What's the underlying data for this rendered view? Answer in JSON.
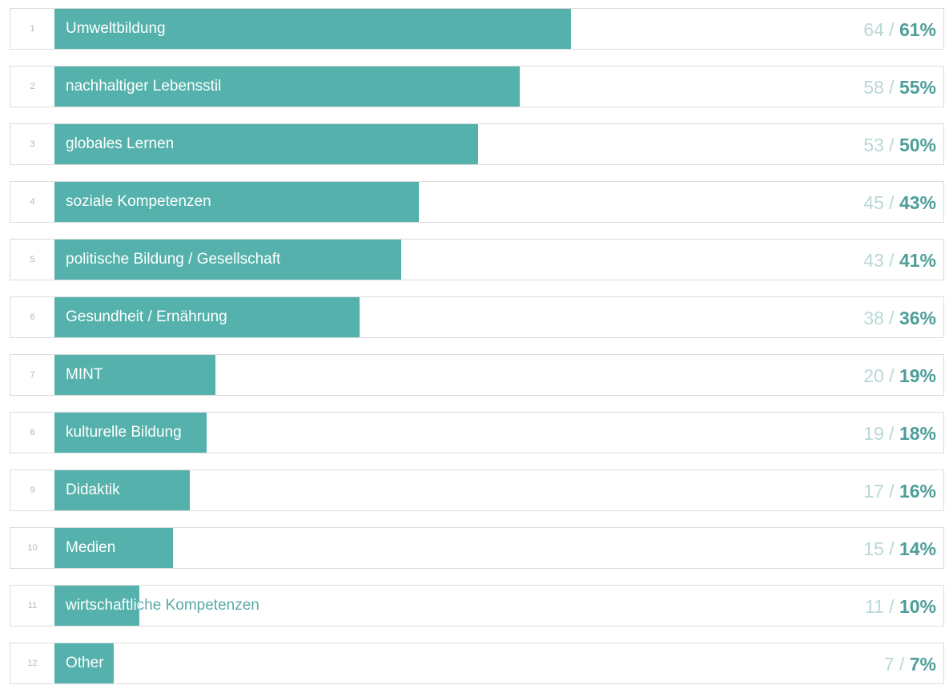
{
  "colors": {
    "bar": "#55b1ab",
    "count_text": "#b9d8d6",
    "percent_text": "#4d9e99",
    "rank_text": "#b7b7b7",
    "border": "#dcdcdc"
  },
  "chart_data": {
    "type": "bar",
    "orientation": "horizontal",
    "grid": false,
    "xlim": [
      0,
      105
    ],
    "items": [
      {
        "rank": "1",
        "label": "Umweltbildung",
        "count": "64",
        "percent": "61%",
        "value": 61
      },
      {
        "rank": "2",
        "label": "nachhaltiger Lebensstil",
        "count": "58",
        "percent": "55%",
        "value": 55
      },
      {
        "rank": "3",
        "label": "globales Lernen",
        "count": "53",
        "percent": "50%",
        "value": 50
      },
      {
        "rank": "4",
        "label": "soziale Kompetenzen",
        "count": "45",
        "percent": "43%",
        "value": 43
      },
      {
        "rank": "5",
        "label": "politische Bildung / Gesellschaft",
        "count": "43",
        "percent": "41%",
        "value": 41
      },
      {
        "rank": "6",
        "label": "Gesundheit / Ernährung",
        "count": "38",
        "percent": "36%",
        "value": 36
      },
      {
        "rank": "7",
        "label": "MINT",
        "count": "20",
        "percent": "19%",
        "value": 19
      },
      {
        "rank": "8",
        "label": "kulturelle Bildung",
        "count": "19",
        "percent": "18%",
        "value": 18
      },
      {
        "rank": "9",
        "label": "Didaktik",
        "count": "17",
        "percent": "16%",
        "value": 16
      },
      {
        "rank": "10",
        "label": "Medien",
        "count": "15",
        "percent": "14%",
        "value": 14
      },
      {
        "rank": "11",
        "label": "wirtschaftliche Kompetenzen",
        "count": "11",
        "percent": "10%",
        "value": 10
      },
      {
        "rank": "12",
        "label": "Other",
        "count": "7",
        "percent": "7%",
        "value": 7
      }
    ]
  }
}
